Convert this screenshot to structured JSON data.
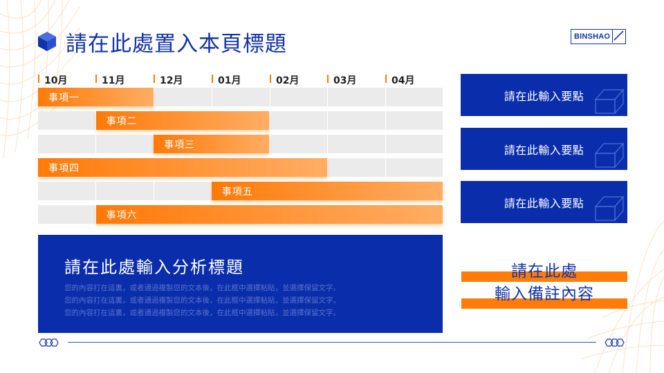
{
  "header": {
    "title": "請在此處置入本頁標題",
    "logo_text": "BINSHAO"
  },
  "timeline": {
    "months": [
      "10月",
      "11月",
      "12月",
      "01月",
      "02月",
      "03月",
      "04月"
    ],
    "tasks": [
      {
        "label": "事項一",
        "start": 0,
        "end": 2
      },
      {
        "label": "事項二",
        "start": 1,
        "end": 4
      },
      {
        "label": "事項三",
        "start": 2,
        "end": 4
      },
      {
        "label": "事項四",
        "start": 0,
        "end": 5
      },
      {
        "label": "事項五",
        "start": 3,
        "end": 7
      },
      {
        "label": "事項六",
        "start": 1,
        "end": 7
      }
    ]
  },
  "key_points": [
    {
      "label": "請在此輸入要點"
    },
    {
      "label": "請在此輸入要點"
    },
    {
      "label": "請在此輸入要點"
    }
  ],
  "analysis": {
    "title": "請在此處輸入分析標題",
    "lines": [
      "您的內容打在這裏，或者通過複製您的文本後，在此框中選擇粘貼，並選擇保留文字。",
      "您的內容打在這裏，或者通過複製您的文本後，在此框中選擇粘貼，並選擇保留文字。",
      "您的內容打在這裏，或者通過複製您的文本後，在此框中選擇粘貼，並選擇保留文字。"
    ]
  },
  "note": {
    "line1": "請在此處",
    "line2": "輸入備註內容"
  },
  "colors": {
    "brand_blue": "#0a2eab",
    "accent_orange": "#ff7a08",
    "bar_gradient_end": "#ffad64"
  }
}
